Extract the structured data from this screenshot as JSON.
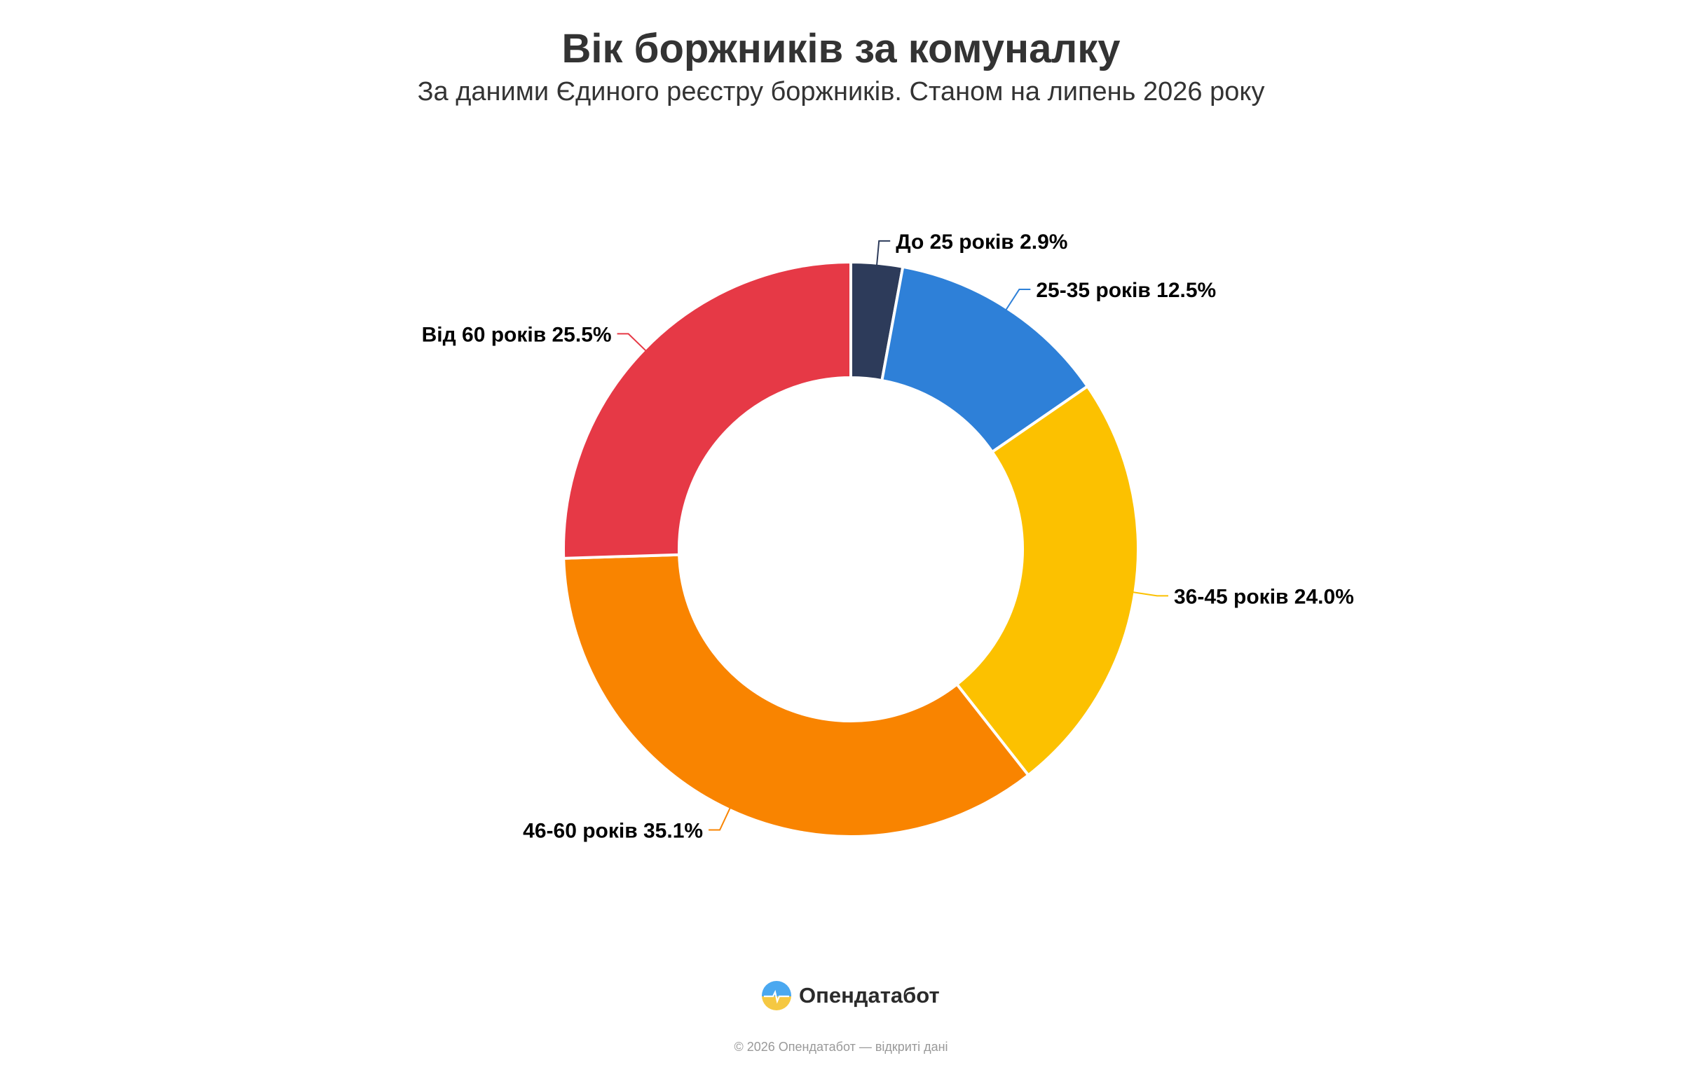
{
  "chart_data": {
    "type": "pie",
    "variant": "donut",
    "title": "Вік боржників за комуналку",
    "subtitle": "За даними Єдиного реєстру боржників. Станом на липень 2026 року",
    "slices": [
      {
        "label": "До 25 років",
        "value": 2.9,
        "display": "До 25 років 2.9%",
        "color": "#2d3b5a"
      },
      {
        "label": "25-35 років",
        "value": 12.5,
        "display": "25-35 років 12.5%",
        "color": "#2e80d8"
      },
      {
        "label": "36-45 років",
        "value": 24.0,
        "display": "36-45 років 24.0%",
        "color": "#fcc100"
      },
      {
        "label": "46-60 років",
        "value": 35.1,
        "display": "46-60 років 35.1%",
        "color": "#f98400"
      },
      {
        "label": "Від 60 років",
        "value": 25.5,
        "display": "Від 60 років 25.5%",
        "color": "#e63946"
      }
    ],
    "unit": "%",
    "legend": "none"
  },
  "branding": {
    "name": "Опендатабот",
    "logo_icon": "opendatabot-logo-icon",
    "logo_colors": [
      "#4aa8f0",
      "#f5c842"
    ]
  },
  "footer": {
    "note": "© 2026 Опендатабот — відкриті дані"
  }
}
